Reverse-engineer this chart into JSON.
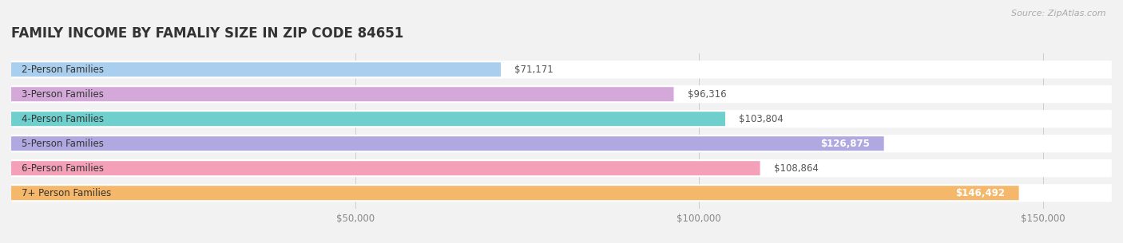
{
  "title": "FAMILY INCOME BY FAMALIY SIZE IN ZIP CODE 84651",
  "source": "Source: ZipAtlas.com",
  "categories": [
    "2-Person Families",
    "3-Person Families",
    "4-Person Families",
    "5-Person Families",
    "6-Person Families",
    "7+ Person Families"
  ],
  "values": [
    71171,
    96316,
    103804,
    126875,
    108864,
    146492
  ],
  "bar_colors": [
    "#aacfee",
    "#d4a8d8",
    "#6ecfcc",
    "#b0a8e0",
    "#f4a0b8",
    "#f5b86a"
  ],
  "label_colors": [
    "#555555",
    "#555555",
    "#555555",
    "#ffffff",
    "#555555",
    "#ffffff"
  ],
  "value_labels": [
    "$71,171",
    "$96,316",
    "$103,804",
    "$126,875",
    "$108,864",
    "$146,492"
  ],
  "xlim": [
    0,
    160000
  ],
  "xticks": [
    0,
    50000,
    100000,
    150000
  ],
  "xticklabels": [
    "",
    "$50,000",
    "$100,000",
    "$150,000"
  ],
  "background_color": "#f2f2f2",
  "title_fontsize": 12,
  "tick_fontsize": 8.5,
  "label_fontsize": 8.5,
  "value_fontsize": 8.5
}
